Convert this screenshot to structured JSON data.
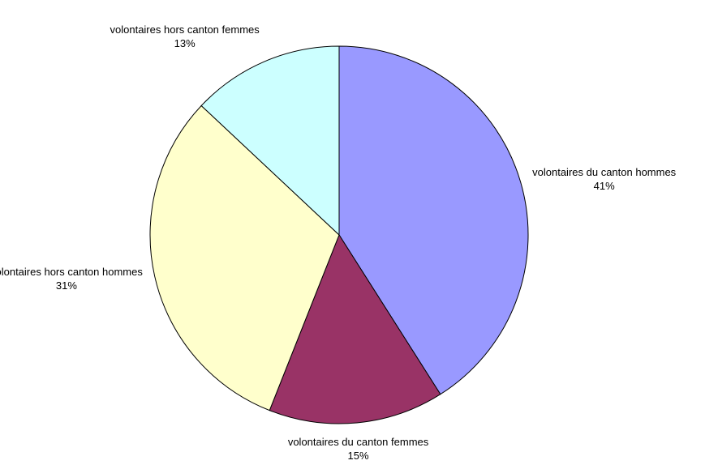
{
  "chart_data": {
    "type": "pie",
    "categories": [
      "volontaires du canton hommes",
      "volontaires du canton femmes",
      "volontaires hors canton hommes",
      "volontaires hors canton femmes"
    ],
    "values": [
      41,
      15,
      31,
      13
    ],
    "value_labels": [
      "41%",
      "15%",
      "31%",
      "13%"
    ],
    "colors": [
      "#9999ff",
      "#993366",
      "#ffffcc",
      "#ccffff"
    ]
  }
}
